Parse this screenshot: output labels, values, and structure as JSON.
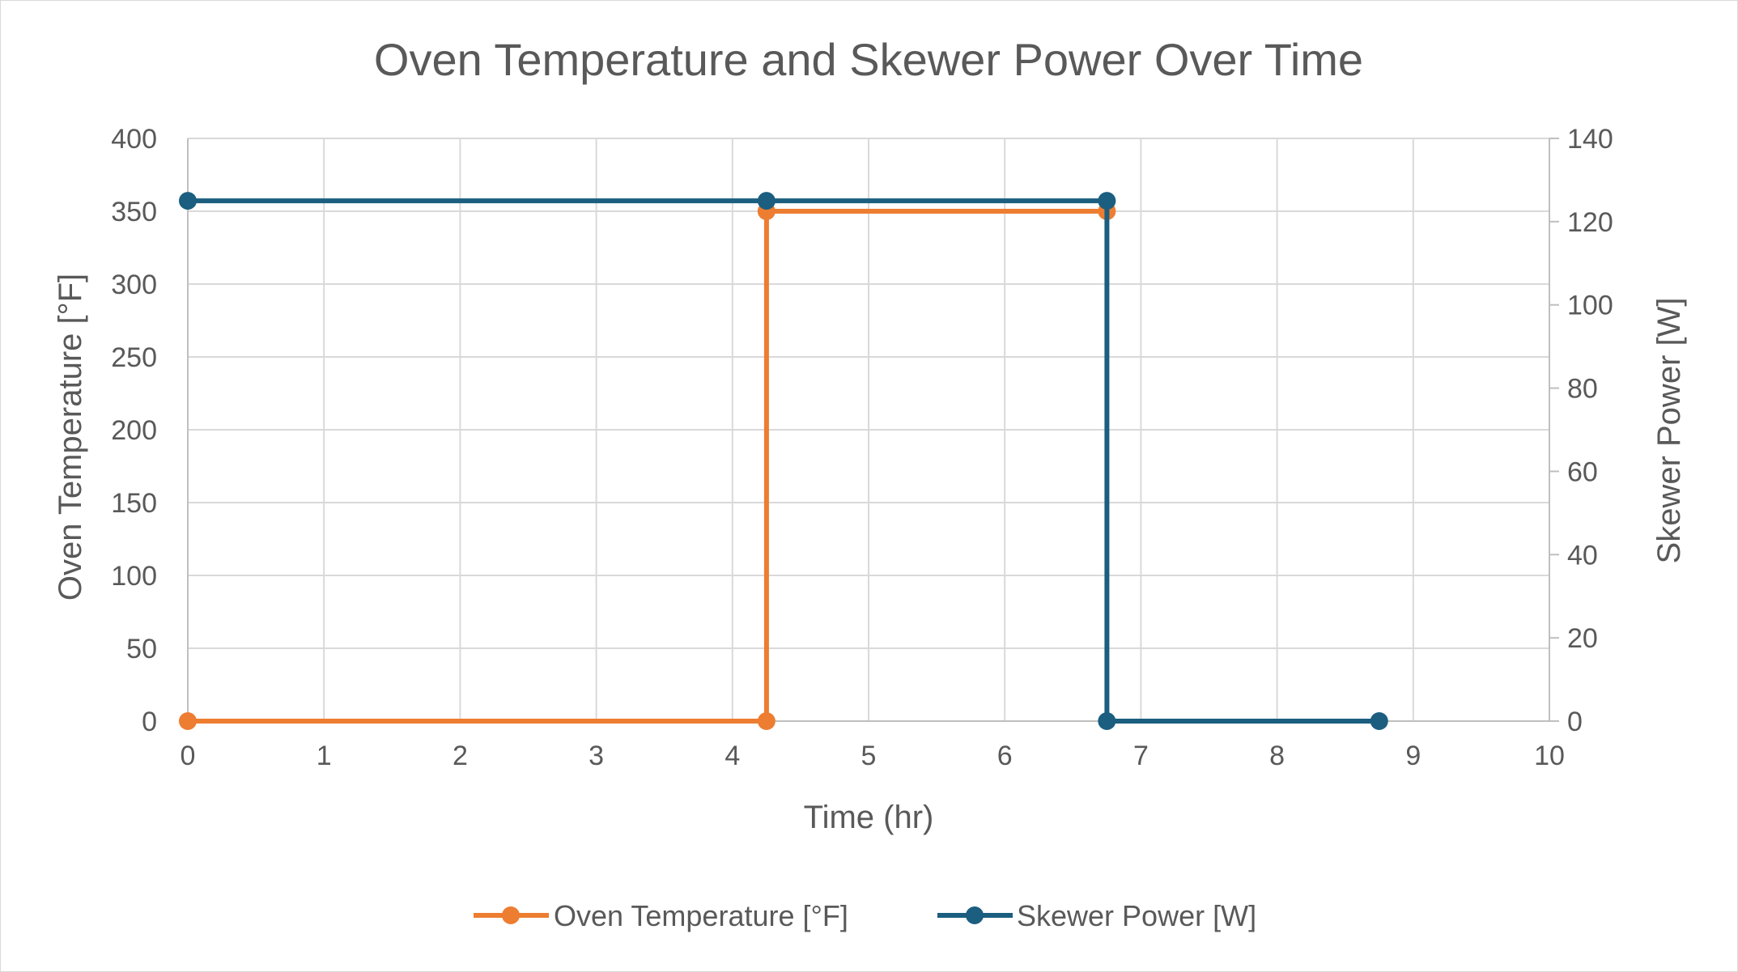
{
  "chart_data": {
    "type": "line",
    "title": "Oven Temperature and Skewer Power Over Time",
    "xlabel": "Time (hr)",
    "ylabel": "Oven Temperature  [°F]",
    "y2label": "Skewer Power [W]",
    "xlim": [
      0,
      10
    ],
    "ylim": [
      0,
      400
    ],
    "y2lim": [
      0,
      140
    ],
    "x_ticks": [
      0,
      1,
      2,
      3,
      4,
      5,
      6,
      7,
      8,
      9,
      10
    ],
    "y_ticks": [
      0,
      50,
      100,
      150,
      200,
      250,
      300,
      350,
      400
    ],
    "y2_ticks": [
      0,
      20,
      40,
      60,
      80,
      100,
      120,
      140
    ],
    "grid": true,
    "legend_position": "bottom",
    "series": [
      {
        "name": "Oven Temperature [°F]",
        "axis": "left",
        "color": "#ED7D31",
        "points": [
          [
            0,
            0
          ],
          [
            4.25,
            0
          ],
          [
            4.25,
            350
          ],
          [
            6.75,
            350
          ]
        ]
      },
      {
        "name": "Skewer Power [W]",
        "axis": "right",
        "color": "#1B5E7F",
        "points": [
          [
            0,
            125
          ],
          [
            4.25,
            125
          ],
          [
            6.75,
            125
          ],
          [
            6.75,
            0
          ],
          [
            8.75,
            0
          ]
        ]
      }
    ]
  }
}
